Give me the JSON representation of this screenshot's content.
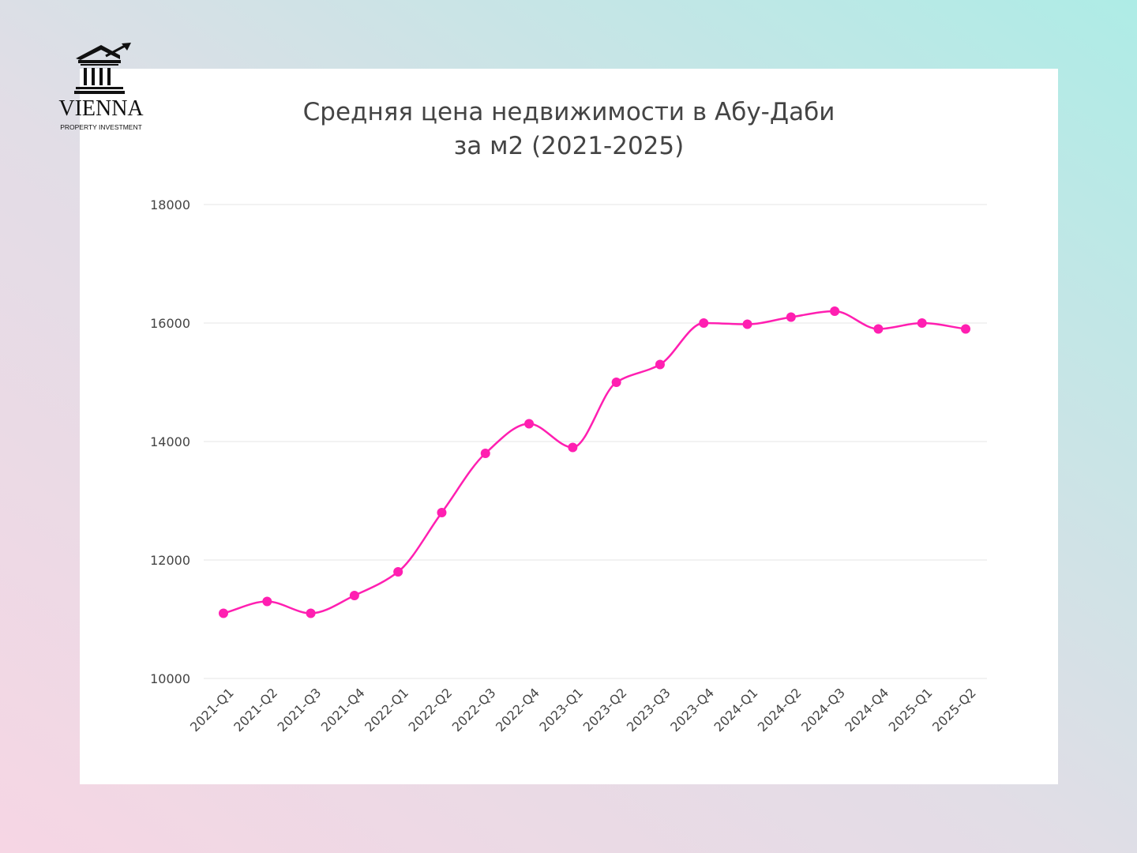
{
  "logo": {
    "icon": "bank-building-with-rising-arrow-icon",
    "name": "VIENNA",
    "subtitle": "PROPERTY INVESTMENT"
  },
  "chart_data": {
    "type": "line",
    "title_line1": "Средняя цена недвижимости в Абу-Даби",
    "title_line2": "за м2 (2021-2025)",
    "xlabel": "",
    "ylabel": "",
    "categories": [
      "2021-Q1",
      "2021-Q2",
      "2021-Q3",
      "2021-Q4",
      "2022-Q1",
      "2022-Q2",
      "2022-Q3",
      "2022-Q4",
      "2023-Q1",
      "2023-Q2",
      "2023-Q3",
      "2023-Q4",
      "2024-Q1",
      "2024-Q2",
      "2024-Q3",
      "2024-Q4",
      "2025-Q1",
      "2025-Q2"
    ],
    "series": [
      {
        "values": [
          11100,
          11300,
          11100,
          11400,
          11800,
          12800,
          13800,
          14300,
          13900,
          15000,
          15300,
          16000,
          15980,
          16100,
          16200,
          15900,
          16000,
          15900
        ],
        "color": "#ff1fb1"
      }
    ],
    "ylim": [
      10000,
      18000
    ],
    "yticks": [
      10000,
      12000,
      14000,
      16000,
      18000
    ],
    "grid": true,
    "legend": "none",
    "smooth": true
  },
  "colors": {
    "line": "#ff1fb1",
    "grid": "#e6e6e6",
    "tick_text": "#444444"
  }
}
